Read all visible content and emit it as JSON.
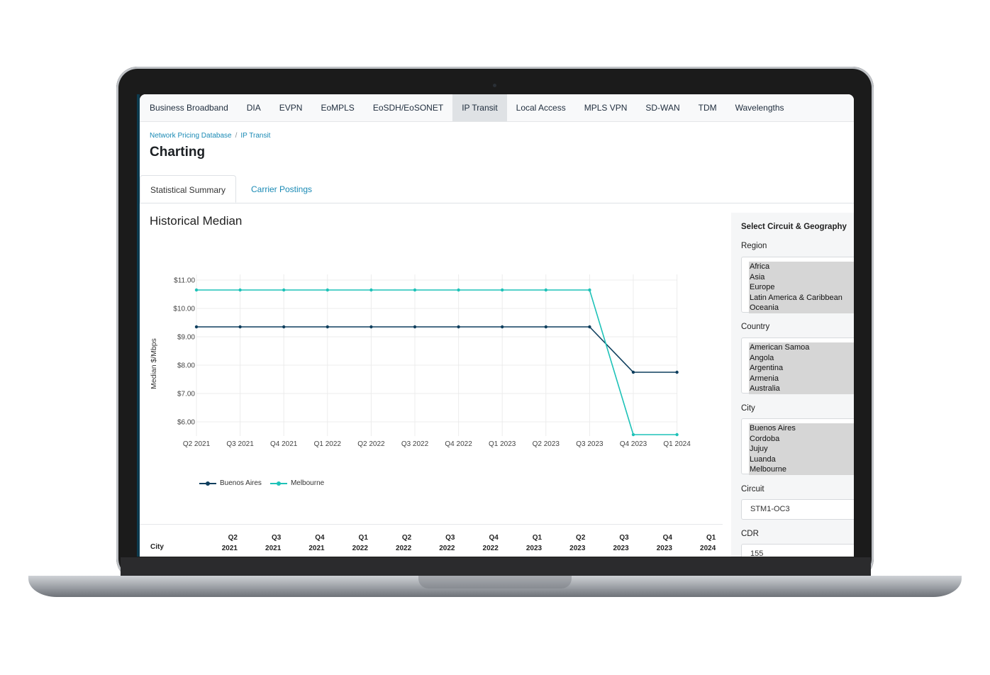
{
  "nav": {
    "items": [
      "Business Broadband",
      "DIA",
      "EVPN",
      "EoMPLS",
      "EoSDH/EoSONET",
      "IP Transit",
      "Local Access",
      "MPLS VPN",
      "SD-WAN",
      "TDM",
      "Wavelengths"
    ],
    "active": "IP Transit"
  },
  "breadcrumb": {
    "root": "Network Pricing Database",
    "separator": "/",
    "current": "IP Transit"
  },
  "page_title": "Charting",
  "tabs": {
    "active": "Statistical Summary",
    "other": "Carrier Postings"
  },
  "section_title": "Historical Median",
  "colors": {
    "accent_link": "#1a8ab5",
    "series_buenos_aires": "#0f3f5e",
    "series_melbourne": "#1ec2b8"
  },
  "chart_data": {
    "type": "line",
    "title": "",
    "xlabel": "",
    "ylabel": "Median $/Mbps",
    "ylim": [
      5.5,
      11.2
    ],
    "yticks": [
      6,
      7,
      8,
      9,
      10,
      11
    ],
    "ytick_labels": [
      "$6.00",
      "$7.00",
      "$8.00",
      "$9.00",
      "$10.00",
      "$11.00"
    ],
    "categories": [
      "Q2 2021",
      "Q3 2021",
      "Q4 2021",
      "Q1 2022",
      "Q2 2022",
      "Q3 2022",
      "Q4 2022",
      "Q1 2023",
      "Q2 2023",
      "Q3 2023",
      "Q4 2023",
      "Q1 2024"
    ],
    "grid": true,
    "legend": "bottom-left",
    "series": [
      {
        "name": "Buenos Aires",
        "color": "#0f3f5e",
        "values": [
          9.35,
          9.35,
          9.35,
          9.35,
          9.35,
          9.35,
          9.35,
          9.35,
          9.35,
          9.35,
          7.75,
          7.75
        ]
      },
      {
        "name": "Melbourne",
        "color": "#1ec2b8",
        "values": [
          10.65,
          10.65,
          10.65,
          10.65,
          10.65,
          10.65,
          10.65,
          10.65,
          10.65,
          10.65,
          5.55,
          5.55
        ]
      }
    ]
  },
  "table": {
    "city_header": "City",
    "columns": [
      [
        "Q2",
        "2021"
      ],
      [
        "Q3",
        "2021"
      ],
      [
        "Q4",
        "2021"
      ],
      [
        "Q1",
        "2022"
      ],
      [
        "Q2",
        "2022"
      ],
      [
        "Q3",
        "2022"
      ],
      [
        "Q4",
        "2022"
      ],
      [
        "Q1",
        "2023"
      ],
      [
        "Q2",
        "2023"
      ],
      [
        "Q3",
        "2023"
      ],
      [
        "Q4",
        "2023"
      ],
      [
        "Q1",
        "2024"
      ]
    ]
  },
  "sidebar": {
    "title": "Select Circuit & Geography",
    "region": {
      "label": "Region",
      "options": [
        "Africa",
        "Asia",
        "Europe",
        "Latin America & Caribbean",
        "Oceania"
      ]
    },
    "country": {
      "label": "Country",
      "options": [
        "American Samoa",
        "Angola",
        "Argentina",
        "Armenia",
        "Australia"
      ]
    },
    "city": {
      "label": "City",
      "options": [
        "Buenos Aires",
        "Cordoba",
        "Jujuy",
        "Luanda",
        "Melbourne"
      ]
    },
    "circuit": {
      "label": "Circuit",
      "value": "STM1-OC3"
    },
    "cdr": {
      "label": "CDR",
      "value": "155"
    }
  }
}
